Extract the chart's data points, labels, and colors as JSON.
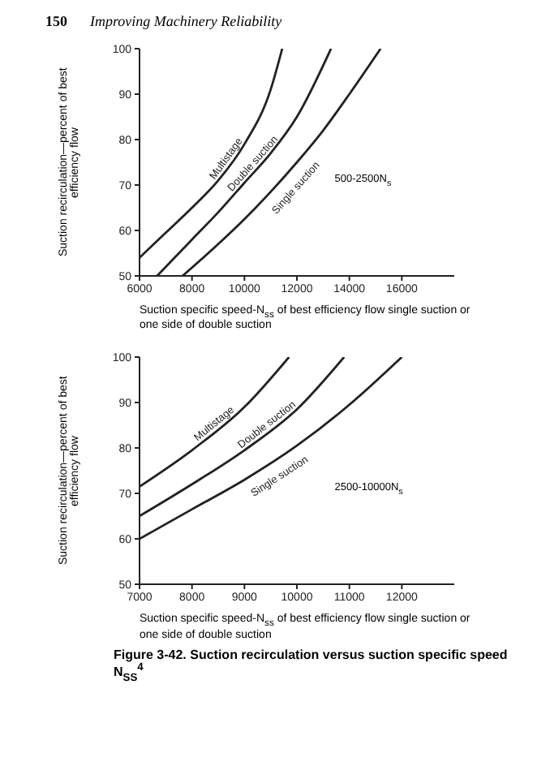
{
  "chart_data": [
    {
      "type": "line",
      "xlabel": "Suction specific speed-N$_{ss}$ of best efficiency flow single suction or one side of double suction",
      "ylabel": "Suction recirculation—percent of best efficiency flow",
      "xlim": [
        6000,
        18000
      ],
      "xticks": [
        6000,
        8000,
        10000,
        12000,
        14000,
        16000
      ],
      "ylim": [
        50,
        100
      ],
      "yticks": [
        50,
        60,
        70,
        80,
        90,
        100
      ],
      "line_style": "solid",
      "annotations": [
        "500-2500N$_{s}$",
        "150",
        "Improving Machinery Reliability"
      ],
      "series": [
        {
          "name": "Multistage",
          "color": "#222222",
          "x": [
            6000,
            7000,
            8000,
            9000,
            10000,
            11000,
            11440
          ],
          "values": [
            54,
            59.5,
            65,
            71,
            79,
            91,
            100
          ]
        },
        {
          "name": "Double suction",
          "color": "#222222",
          "x": [
            6670,
            8000,
            9000,
            10000,
            11000,
            12000,
            13300
          ],
          "values": [
            50,
            58,
            64,
            70.5,
            77,
            85,
            100
          ]
        },
        {
          "name": "Single suction",
          "color": "#222222",
          "x": [
            7640,
            9000,
            10000,
            11000,
            12000,
            13000,
            14000,
            15190
          ],
          "values": [
            50,
            57,
            62.5,
            68.5,
            75,
            82,
            90,
            100
          ]
        }
      ]
    },
    {
      "type": "line",
      "xlabel": "Suction specific speed-N$_{ss}$ of best efficiency flow single suction or one side of double suction",
      "ylabel": "Suction recirculation—percent of best efficiency flow",
      "xlim": [
        7000,
        13000
      ],
      "xticks": [
        7000,
        8000,
        9000,
        10000,
        11000,
        12000
      ],
      "ylim": [
        50,
        100
      ],
      "yticks": [
        50,
        60,
        70,
        80,
        90,
        100
      ],
      "line_style": "solid",
      "annotations": [
        "2500-10000N$_{s}$",
        "Figure 3-42. Suction recirculation versus suction specific speed N$_{SS}$$^{4}$"
      ],
      "series": [
        {
          "name": "Multistage",
          "color": "#222222",
          "x": [
            7000,
            8000,
            9000,
            9850
          ],
          "values": [
            71.5,
            79.5,
            89,
            100
          ]
        },
        {
          "name": "Double suction",
          "color": "#222222",
          "x": [
            7000,
            8000,
            9000,
            10000,
            10900
          ],
          "values": [
            65,
            72,
            79.5,
            88.5,
            100
          ]
        },
        {
          "name": "Single suction",
          "color": "#222222",
          "x": [
            7000,
            8000,
            9000,
            10000,
            11000,
            12000
          ],
          "values": [
            60,
            66.5,
            73,
            80.5,
            89.5,
            100
          ]
        }
      ]
    }
  ]
}
